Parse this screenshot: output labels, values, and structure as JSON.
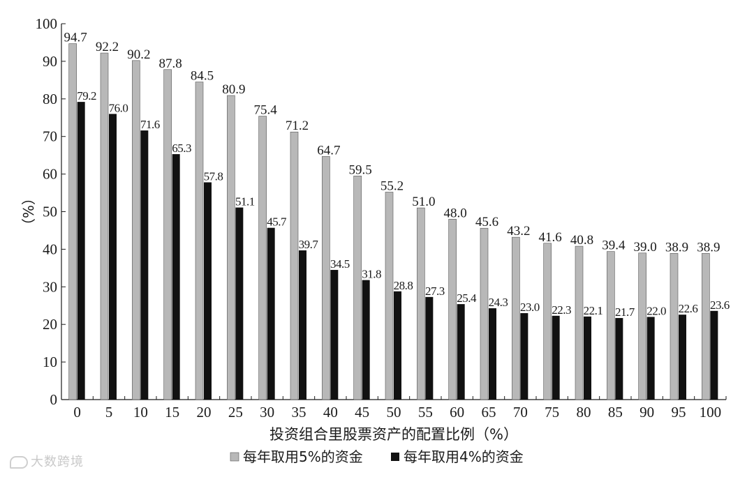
{
  "chart_data": {
    "type": "bar",
    "categories": [
      "0",
      "5",
      "10",
      "15",
      "20",
      "25",
      "30",
      "35",
      "40",
      "45",
      "50",
      "55",
      "60",
      "65",
      "70",
      "75",
      "80",
      "85",
      "90",
      "95",
      "100"
    ],
    "series": [
      {
        "name": "每年取用5%的资金",
        "color": "#b8b8b8",
        "values": [
          94.7,
          92.2,
          90.2,
          87.8,
          84.5,
          80.9,
          75.4,
          71.2,
          64.7,
          59.5,
          55.2,
          51.0,
          48.0,
          45.6,
          43.2,
          41.6,
          40.8,
          39.4,
          39.0,
          38.9,
          38.9
        ]
      },
      {
        "name": "每年取用4%的资金",
        "color": "#111111",
        "values": [
          79.2,
          76.0,
          71.6,
          65.3,
          57.8,
          51.1,
          45.7,
          39.7,
          34.5,
          31.8,
          28.8,
          27.3,
          25.4,
          24.3,
          23.0,
          22.3,
          22.1,
          21.7,
          22.0,
          22.6,
          23.6
        ]
      }
    ],
    "xlabel": "投资组合里股票资产的配置比例（%）",
    "ylabel": "（%）",
    "ylim": [
      0,
      100
    ],
    "yticks": [
      0,
      10,
      20,
      30,
      40,
      50,
      60,
      70,
      80,
      90,
      100
    ],
    "grid": false,
    "legend_position": "bottom-center"
  },
  "watermark": "大数跨境"
}
